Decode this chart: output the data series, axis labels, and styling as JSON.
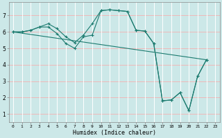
{
  "xlabel": "Humidex (Indice chaleur)",
  "bg_color": "#cce8e8",
  "grid_color_h": "#f0b8b8",
  "grid_color_v": "#ffffff",
  "line_color": "#1a7a6e",
  "xlim": [
    -0.5,
    23.5
  ],
  "ylim": [
    0.5,
    7.8
  ],
  "xticks": [
    0,
    1,
    2,
    3,
    4,
    5,
    6,
    7,
    8,
    9,
    10,
    11,
    12,
    13,
    14,
    15,
    16,
    17,
    18,
    19,
    20,
    21,
    22,
    23
  ],
  "yticks": [
    1,
    2,
    3,
    4,
    5,
    6,
    7
  ],
  "series1_x": [
    0,
    1,
    2,
    3,
    4,
    5,
    6,
    7,
    8,
    9,
    10,
    11,
    12,
    13,
    14,
    15,
    16,
    17,
    18,
    19,
    20,
    21,
    22
  ],
  "series1_y": [
    6.0,
    6.0,
    6.1,
    6.3,
    6.5,
    6.2,
    5.7,
    5.35,
    5.8,
    6.5,
    7.3,
    7.35,
    7.3,
    7.25,
    6.1,
    6.05,
    5.3,
    1.8,
    1.85,
    2.3,
    1.2,
    3.3,
    4.3
  ],
  "series2_x": [
    0,
    1,
    2,
    3,
    4,
    5,
    6,
    7,
    8,
    9,
    10,
    11,
    12,
    13,
    14,
    15,
    16,
    17,
    18,
    19,
    20,
    21,
    22
  ],
  "series2_y": [
    6.0,
    6.0,
    6.1,
    6.3,
    6.3,
    5.9,
    5.3,
    5.0,
    5.7,
    5.8,
    7.3,
    7.35,
    7.3,
    7.25,
    6.1,
    6.05,
    5.3,
    1.8,
    1.85,
    2.3,
    1.2,
    3.3,
    4.3
  ],
  "series3_x": [
    0,
    22
  ],
  "series3_y": [
    6.0,
    4.3
  ]
}
